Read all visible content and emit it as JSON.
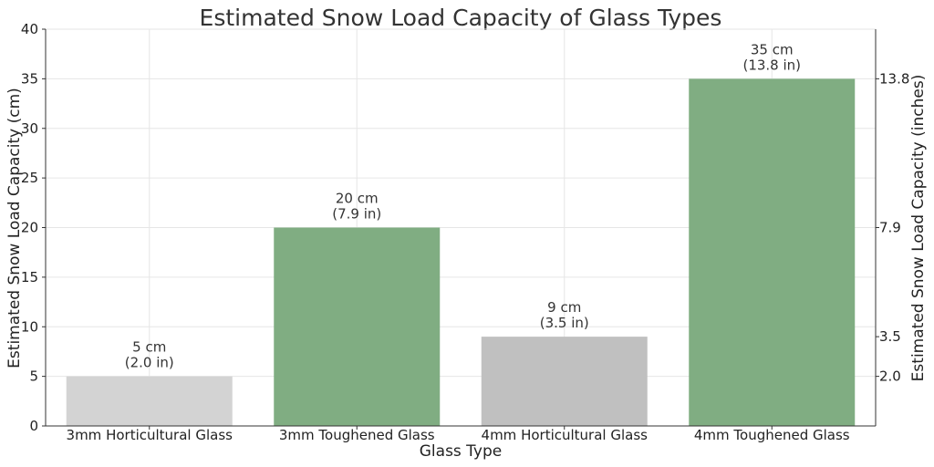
{
  "chart_data": {
    "type": "bar",
    "title": "Estimated Snow Load Capacity of Glass Types",
    "xlabel": "Glass Type",
    "ylabel": "Estimated Snow Load Capacity (cm)",
    "y2label": "Estimated Snow Load Capacity (inches)",
    "categories": [
      "3mm Horticultural Glass",
      "3mm Toughened Glass",
      "4mm Horticultural Glass",
      "4mm Toughened Glass"
    ],
    "values": [
      5,
      20,
      9,
      35
    ],
    "data_labels": [
      [
        "5 cm",
        "(2.0 in)"
      ],
      [
        "20 cm",
        "(7.9 in)"
      ],
      [
        "9 cm",
        "(3.5 in)"
      ],
      [
        "35 cm",
        "(13.8 in)"
      ]
    ],
    "colors": [
      "#d3d3d3",
      "#80ad82",
      "#c0c0c0",
      "#80ad82"
    ],
    "ylim": [
      0,
      40
    ],
    "yticks": [
      0,
      5,
      10,
      15,
      20,
      25,
      30,
      35,
      40
    ],
    "y2ticks": [
      {
        "value": 5,
        "label": "2.0"
      },
      {
        "value": 9,
        "label": "3.5"
      },
      {
        "value": 20,
        "label": "7.9"
      },
      {
        "value": 35,
        "label": "13.8"
      }
    ],
    "grid": true
  }
}
